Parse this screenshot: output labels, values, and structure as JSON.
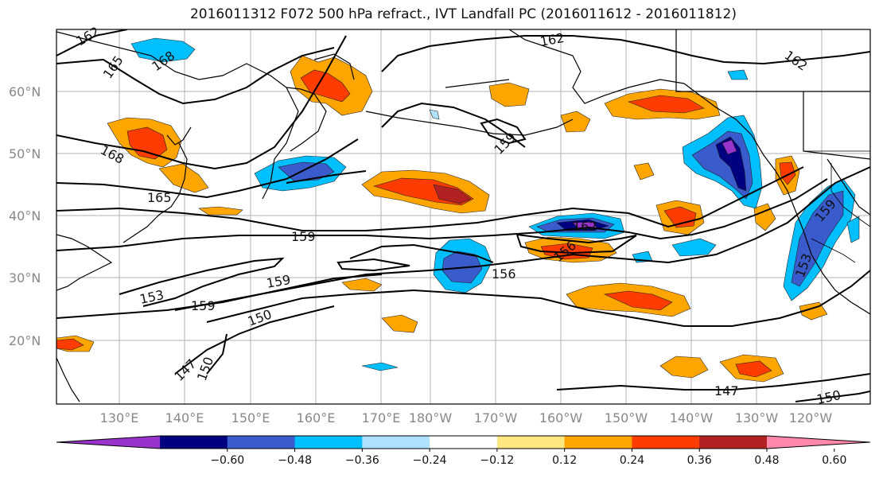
{
  "title": "2016011312 F072 500 hPa refract., IVT Landfall PC (2016011612 - 2016011812)",
  "lat_labels": [
    "60°N",
    "50°N",
    "40°N",
    "30°N",
    "20°N"
  ],
  "lon_labels": [
    "130°E",
    "140°E",
    "150°E",
    "160°E",
    "170°E",
    "180°W",
    "170°W",
    "160°W",
    "150°W",
    "140°W",
    "130°W",
    "120°W"
  ],
  "contour_labels": [
    "162",
    "165",
    "168",
    "168",
    "165",
    "159",
    "153",
    "159",
    "159",
    "150",
    "147",
    "150",
    "162",
    "159",
    "162",
    "156",
    "156",
    "159",
    "153",
    "147",
    "150",
    "162"
  ],
  "colorbar": {
    "ticks": [
      "−0.60",
      "−0.48",
      "−0.36",
      "−0.24",
      "−0.12",
      "0.12",
      "0.24",
      "0.36",
      "0.48",
      "0.60"
    ],
    "colors": [
      "#9933cc",
      "#000080",
      "#3a5bcc",
      "#00bfff",
      "#b0e2ff",
      "#ffffff",
      "#ffe680",
      "#ffa500",
      "#ff3c00",
      "#b22222",
      "#ff88aa"
    ]
  },
  "palette": {
    "pos_light": "#ffe680",
    "pos_mid": "#ffa500",
    "pos_high": "#ff3c00",
    "pos_max": "#b22222",
    "neg_light": "#b0e2ff",
    "neg_mid": "#00bfff",
    "neg_high": "#3a5bcc",
    "neg_max": "#000080",
    "neg_ext": "#9933cc"
  }
}
